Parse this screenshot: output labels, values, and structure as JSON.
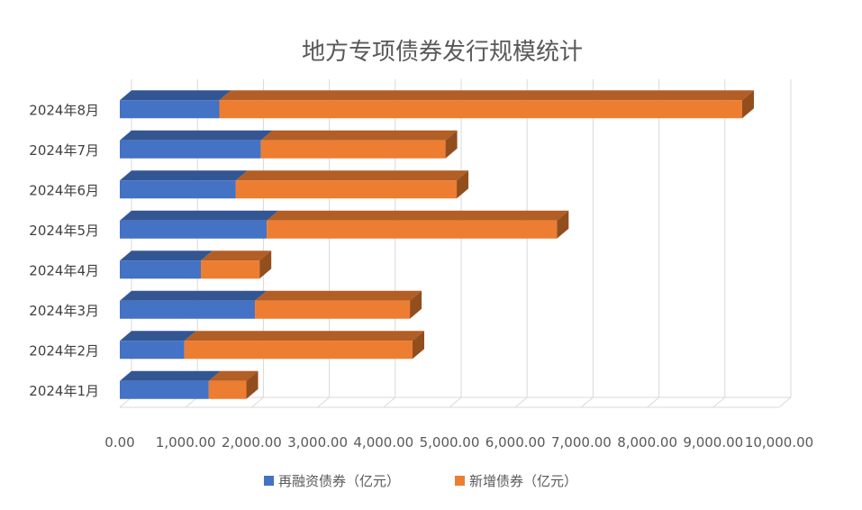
{
  "chart_data": {
    "type": "bar",
    "orientation": "horizontal",
    "stacked": true,
    "style": "3d",
    "title": "地方专项债券发行规模统计",
    "xlabel": "",
    "ylabel": "",
    "xlim": [
      0,
      10000
    ],
    "x_ticks": [
      "0.00",
      "1,000.00",
      "2,000.00",
      "3,000.00",
      "4,000.00",
      "5,000.00",
      "6,000.00",
      "7,000.00",
      "8,000.00",
      "9,000.00",
      "10,000.00"
    ],
    "categories": [
      "2024年1月",
      "2024年2月",
      "2024年3月",
      "2024年4月",
      "2024年5月",
      "2024年6月",
      "2024年7月",
      "2024年8月"
    ],
    "series": [
      {
        "name": "再融资债券（亿元）",
        "color": "#4472C4",
        "values": [
          1350,
          980,
          2050,
          1230,
          2230,
          1760,
          2140,
          1510
        ]
      },
      {
        "name": "新增债券（亿元）",
        "color": "#ED7D31",
        "values": [
          570,
          3460,
          2350,
          890,
          4400,
          3350,
          2800,
          7930
        ]
      }
    ],
    "legend_position": "bottom",
    "grid": true
  }
}
